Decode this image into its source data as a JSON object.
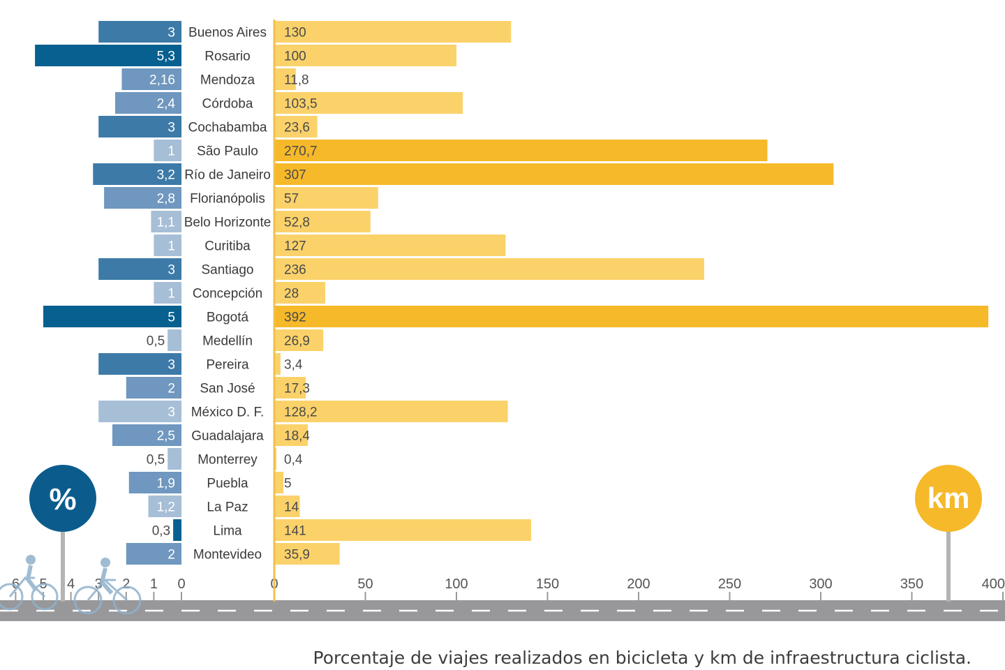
{
  "colors": {
    "blue_dark": "#07608f",
    "blue_mid": "#3d7aa8",
    "blue_light": "#6f97bf",
    "blue_pale": "#a6bed6",
    "gold_dark": "#f6b929",
    "gold_light": "#fbd26a",
    "road": "#98989a",
    "badge_blue": "#0b5c8d",
    "badge_gold": "#f6b929",
    "post": "#b4b4b4"
  },
  "caption": "Porcentaje de viajes realizados en bicicleta y km de infraestructura ciclista.",
  "badges": {
    "left": "%",
    "right": "km"
  },
  "chart_data": {
    "type": "bar",
    "title": "Porcentaje de viajes realizados en bicicleta y km de infraestructura ciclista.",
    "categories": [
      "Buenos Aires",
      "Rosario",
      "Mendoza",
      "Córdoba",
      "Cochabamba",
      "São Paulo",
      "Río de Janeiro",
      "Florianópolis",
      "Belo Horizonte",
      "Curitiba",
      "Santiago",
      "Concepción",
      "Bogotá",
      "Medellín",
      "Pereira",
      "San José",
      "México D. F.",
      "Guadalajara",
      "Monterrey",
      "Puebla",
      "La Paz",
      "Lima",
      "Montevideo"
    ],
    "series": [
      {
        "name": "%",
        "values": [
          3,
          5.3,
          2.16,
          2.4,
          3,
          1,
          3.2,
          2.8,
          1.1,
          1,
          3,
          1,
          5,
          0.5,
          3,
          2,
          3,
          2.5,
          0.5,
          1.9,
          1.2,
          0.3,
          2
        ],
        "labels": [
          "3",
          "5,3",
          "2,16",
          "2,4",
          "3",
          "1",
          "3,2",
          "2,8",
          "1,1",
          "1",
          "3",
          "1",
          "5",
          "0,5",
          "3",
          "2",
          "3",
          "2,5",
          "0,5",
          "1,9",
          "1,2",
          "0,3",
          "2"
        ],
        "shade": [
          1,
          0,
          2,
          2,
          1,
          3,
          1,
          2,
          3,
          3,
          1,
          3,
          0,
          3,
          1,
          2,
          3,
          2,
          3,
          2,
          3,
          0,
          2
        ]
      },
      {
        "name": "km",
        "values": [
          130,
          100,
          11.8,
          103.5,
          23.6,
          270.7,
          307,
          57,
          52.8,
          127,
          236,
          28,
          392,
          26.9,
          3.4,
          17.3,
          128.2,
          18.4,
          0.4,
          5,
          14,
          141,
          35.9
        ],
        "labels": [
          "130",
          "100",
          "11,8",
          "103,5",
          "23,6",
          "270,7",
          "307",
          "57",
          "52,8",
          "127",
          "236",
          "28",
          "392",
          "26,9",
          "3,4",
          "17,3",
          "128,2",
          "18,4",
          "0,4",
          "5",
          "14",
          "141",
          "35,9"
        ],
        "shade": [
          1,
          1,
          1,
          1,
          1,
          0,
          0,
          1,
          1,
          1,
          1,
          1,
          0,
          1,
          1,
          1,
          1,
          1,
          1,
          1,
          1,
          1,
          1
        ]
      }
    ],
    "left_axis": {
      "label": "%",
      "ticks": [
        "6",
        "5",
        "4",
        "3",
        "2",
        "1",
        "0"
      ],
      "range": [
        6,
        0
      ]
    },
    "right_axis": {
      "label": "km",
      "ticks": [
        "0",
        "50",
        "100",
        "150",
        "200",
        "250",
        "300",
        "350",
        "400"
      ],
      "range": [
        0,
        400
      ]
    }
  }
}
